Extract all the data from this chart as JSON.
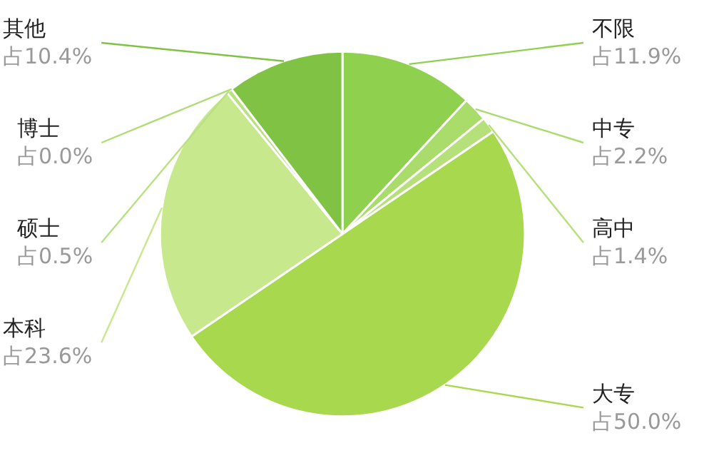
{
  "chart_data": {
    "type": "pie",
    "categories": [
      "不限",
      "中专",
      "高中",
      "大专",
      "本科",
      "硕士",
      "博士",
      "其他"
    ],
    "values": [
      11.9,
      2.2,
      1.4,
      50.0,
      23.6,
      0.5,
      0.0,
      10.4
    ],
    "value_labels": [
      "占11.9%",
      "占2.2%",
      "占1.4%",
      "占50.0%",
      "占23.6%",
      "占0.5%",
      "占0.0%",
      "占10.4%"
    ],
    "colors": [
      "#8fd14f",
      "#a9dc6a",
      "#b5e07a",
      "#a8d84e",
      "#c8e88e",
      "#b9e182",
      "#b0dc76",
      "#7fc244"
    ]
  }
}
